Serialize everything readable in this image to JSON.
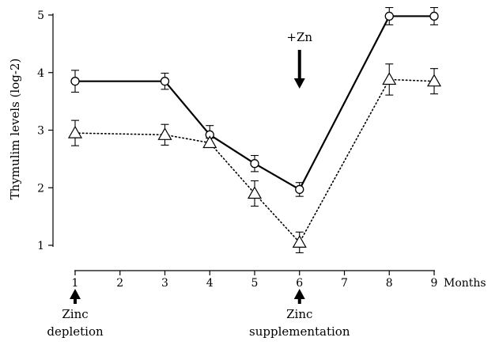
{
  "chart_data": {
    "type": "line",
    "ylabel": "Thymulim levels (log-2)",
    "x_unit_label": "Months",
    "xlim": [
      1,
      9
    ],
    "ylim": [
      1,
      5
    ],
    "x_ticks": [
      1,
      2,
      3,
      4,
      5,
      6,
      7,
      8,
      9
    ],
    "y_ticks": [
      1,
      2,
      3,
      4,
      5
    ],
    "grid": false,
    "series": [
      {
        "style": "solid",
        "marker": "circle",
        "color": "#000000",
        "x": [
          1,
          3,
          4,
          5,
          6,
          8,
          9
        ],
        "y": [
          3.85,
          3.85,
          2.92,
          2.42,
          1.97,
          4.98,
          4.98
        ],
        "err": [
          0.19,
          0.14,
          0.16,
          0.14,
          0.12,
          0.15,
          0.15
        ]
      },
      {
        "style": "dotted",
        "marker": "triangle",
        "color": "#000000",
        "x": [
          1,
          3,
          4,
          5,
          6,
          8,
          9
        ],
        "y": [
          2.95,
          2.92,
          2.78,
          1.9,
          1.05,
          3.88,
          3.85
        ],
        "err": [
          0.22,
          0.18,
          0.08,
          0.22,
          0.18,
          0.27,
          0.22
        ]
      }
    ],
    "annotations": [
      {
        "id": "zn",
        "text": "+Zn",
        "x": 6,
        "y": 5,
        "arrow": "down"
      },
      {
        "id": "depletion",
        "lines": [
          "Zinc",
          "depletion"
        ],
        "x": 1,
        "arrow": "up"
      },
      {
        "id": "supplementation",
        "lines": [
          "Zinc",
          "supplementation"
        ],
        "x": 6,
        "arrow": "up"
      }
    ]
  }
}
